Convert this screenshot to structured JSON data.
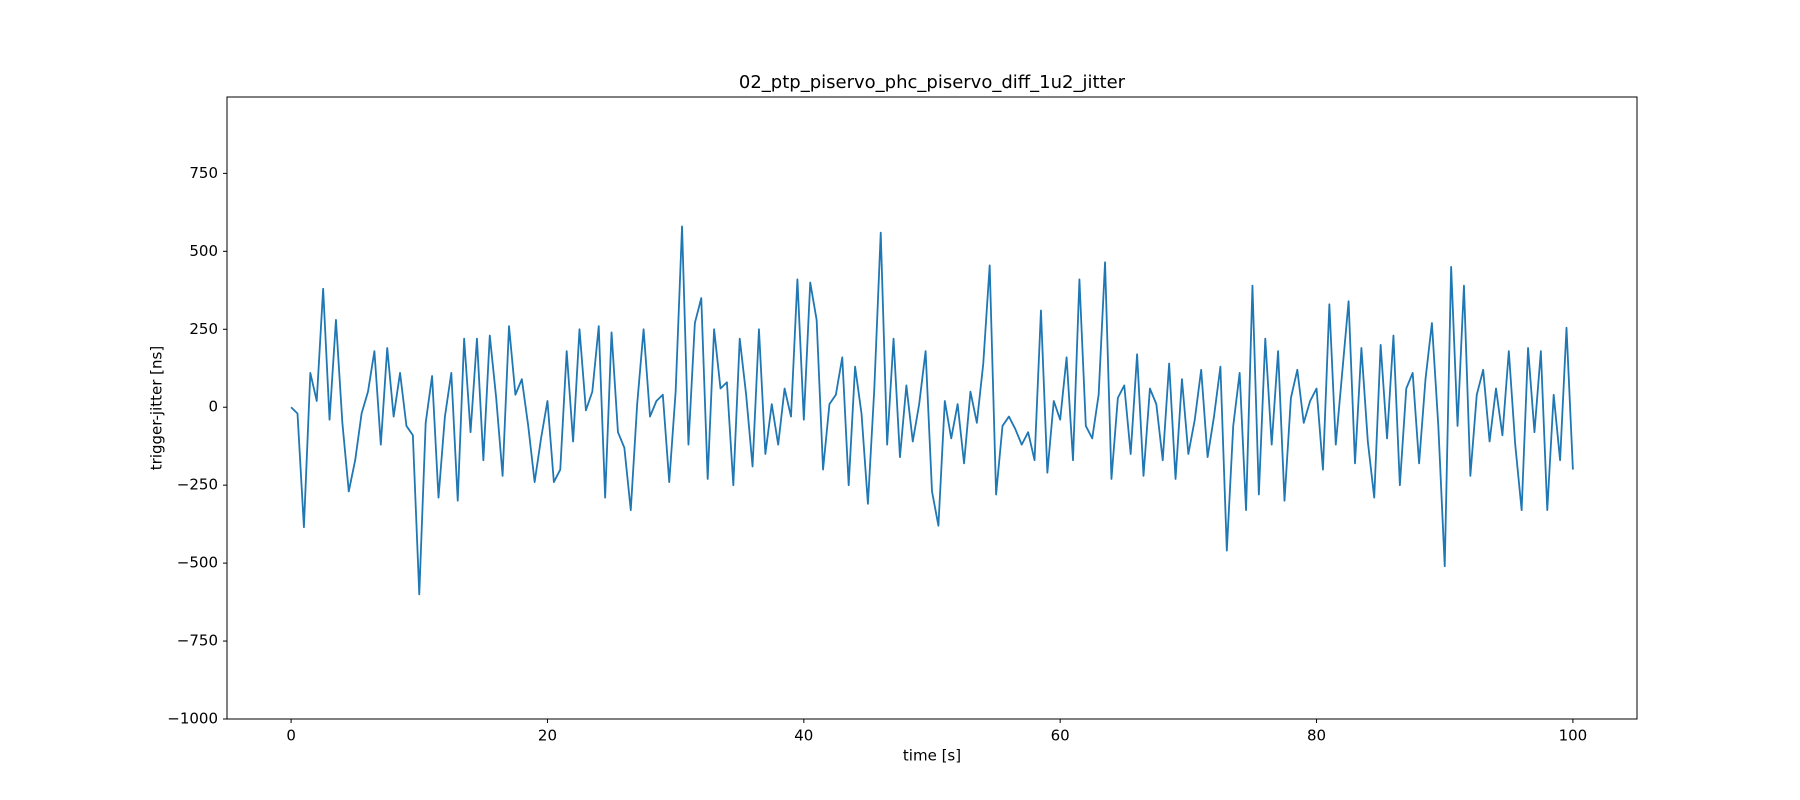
{
  "chart_data": {
    "type": "line",
    "title": "02_ptp_piservo_phc_piservo_diff_1u2_jitter",
    "x_label": "time [s]",
    "y_label": "trigger-jitter [ns]",
    "color": "#1f77b4",
    "xlim": [
      -5,
      105
    ],
    "xticks": [
      0,
      20,
      40,
      60,
      80,
      100
    ],
    "ylim": [
      -1000,
      995
    ],
    "yticks": [
      {
        "value": -1000,
        "label": "−1000"
      },
      {
        "value": -750,
        "label": "−750"
      },
      {
        "value": -500,
        "label": "−500"
      },
      {
        "value": -250,
        "label": "−250"
      },
      0,
      250,
      500,
      750
    ],
    "x": [
      0,
      0.5,
      1,
      1.5,
      2,
      2.5,
      3,
      3.5,
      4,
      4.5,
      5,
      5.5,
      6,
      6.5,
      7,
      7.5,
      8,
      8.5,
      9,
      9.5,
      10,
      10.5,
      11,
      11.5,
      12,
      12.5,
      13,
      13.5,
      14,
      14.5,
      15,
      15.5,
      16,
      16.5,
      17,
      17.5,
      18,
      18.5,
      19,
      19.5,
      20,
      20.5,
      21,
      21.5,
      22,
      22.5,
      23,
      23.5,
      24,
      24.5,
      25,
      25.5,
      26,
      26.5,
      27,
      27.5,
      28,
      28.5,
      29,
      29.5,
      30,
      30.5,
      31,
      31.5,
      32,
      32.5,
      33,
      33.5,
      34,
      34.5,
      35,
      35.5,
      36,
      36.5,
      37,
      37.5,
      38,
      38.5,
      39,
      39.5,
      40,
      40.5,
      41,
      41.5,
      42,
      42.5,
      43,
      43.5,
      44,
      44.5,
      45,
      45.5,
      46,
      46.5,
      47,
      47.5,
      48,
      48.5,
      49,
      49.5,
      50,
      50.5,
      51,
      51.5,
      52,
      52.5,
      53,
      53.5,
      54,
      54.5,
      55,
      55.5,
      56,
      56.5,
      57,
      57.5,
      58,
      58.5,
      59,
      59.5,
      60,
      60.5,
      61,
      61.5,
      62,
      62.5,
      63,
      63.5,
      64,
      64.5,
      65,
      65.5,
      66,
      66.5,
      67,
      67.5,
      68,
      68.5,
      69,
      69.5,
      70,
      70.5,
      71,
      71.5,
      72,
      72.5,
      73,
      73.5,
      74,
      74.5,
      75,
      75.5,
      76,
      76.5,
      77,
      77.5,
      78,
      78.5,
      79,
      79.5,
      80,
      80.5,
      81,
      81.5,
      82,
      82.5,
      83,
      83.5,
      84,
      84.5,
      85,
      85.5,
      86,
      86.5,
      87,
      87.5,
      88,
      88.5,
      89,
      89.5,
      90,
      90.5,
      91,
      91.5,
      92,
      92.5,
      93,
      93.5,
      94,
      94.5,
      95,
      95.5,
      96,
      96.5,
      97,
      97.5,
      98,
      98.5,
      99,
      99.5,
      100
    ],
    "values": [
      0,
      -20,
      -385,
      110,
      20,
      380,
      -40,
      280,
      -50,
      -270,
      -170,
      -20,
      50,
      180,
      -120,
      190,
      -30,
      110,
      -60,
      -90,
      -600,
      -50,
      100,
      -290,
      -30,
      110,
      -300,
      220,
      -80,
      220,
      -170,
      230,
      30,
      -220,
      260,
      40,
      90,
      -60,
      -240,
      -100,
      20,
      -240,
      -200,
      180,
      -110,
      250,
      -10,
      50,
      260,
      -290,
      240,
      -80,
      -130,
      -330,
      10,
      250,
      -30,
      20,
      40,
      -240,
      50,
      580,
      -120,
      270,
      350,
      -230,
      250,
      60,
      80,
      -250,
      220,
      40,
      -190,
      250,
      -150,
      10,
      -120,
      60,
      -30,
      410,
      -40,
      400,
      280,
      -200,
      10,
      40,
      160,
      -250,
      130,
      -20,
      -310,
      60,
      560,
      -120,
      220,
      -160,
      70,
      -110,
      10,
      180,
      -270,
      -380,
      20,
      -100,
      10,
      -180,
      50,
      -50,
      140,
      455,
      -280,
      -60,
      -30,
      -70,
      -120,
      -80,
      -170,
      310,
      -210,
      20,
      -40,
      160,
      -170,
      410,
      -60,
      -100,
      40,
      465,
      -230,
      30,
      70,
      -150,
      170,
      -220,
      60,
      10,
      -170,
      140,
      -230,
      90,
      -150,
      -40,
      120,
      -160,
      -30,
      130,
      -460,
      -60,
      110,
      -330,
      390,
      -280,
      220,
      -120,
      180,
      -300,
      30,
      120,
      -50,
      20,
      60,
      -200,
      330,
      -120,
      110,
      340,
      -180,
      190,
      -110,
      -290,
      200,
      -100,
      230,
      -250,
      60,
      110,
      -180,
      90,
      270,
      -60,
      -510,
      450,
      -60,
      390,
      -220,
      40,
      120,
      -110,
      60,
      -90,
      180,
      -120,
      -330,
      190,
      -80,
      180,
      -330,
      40,
      -170,
      255,
      -200
    ]
  }
}
